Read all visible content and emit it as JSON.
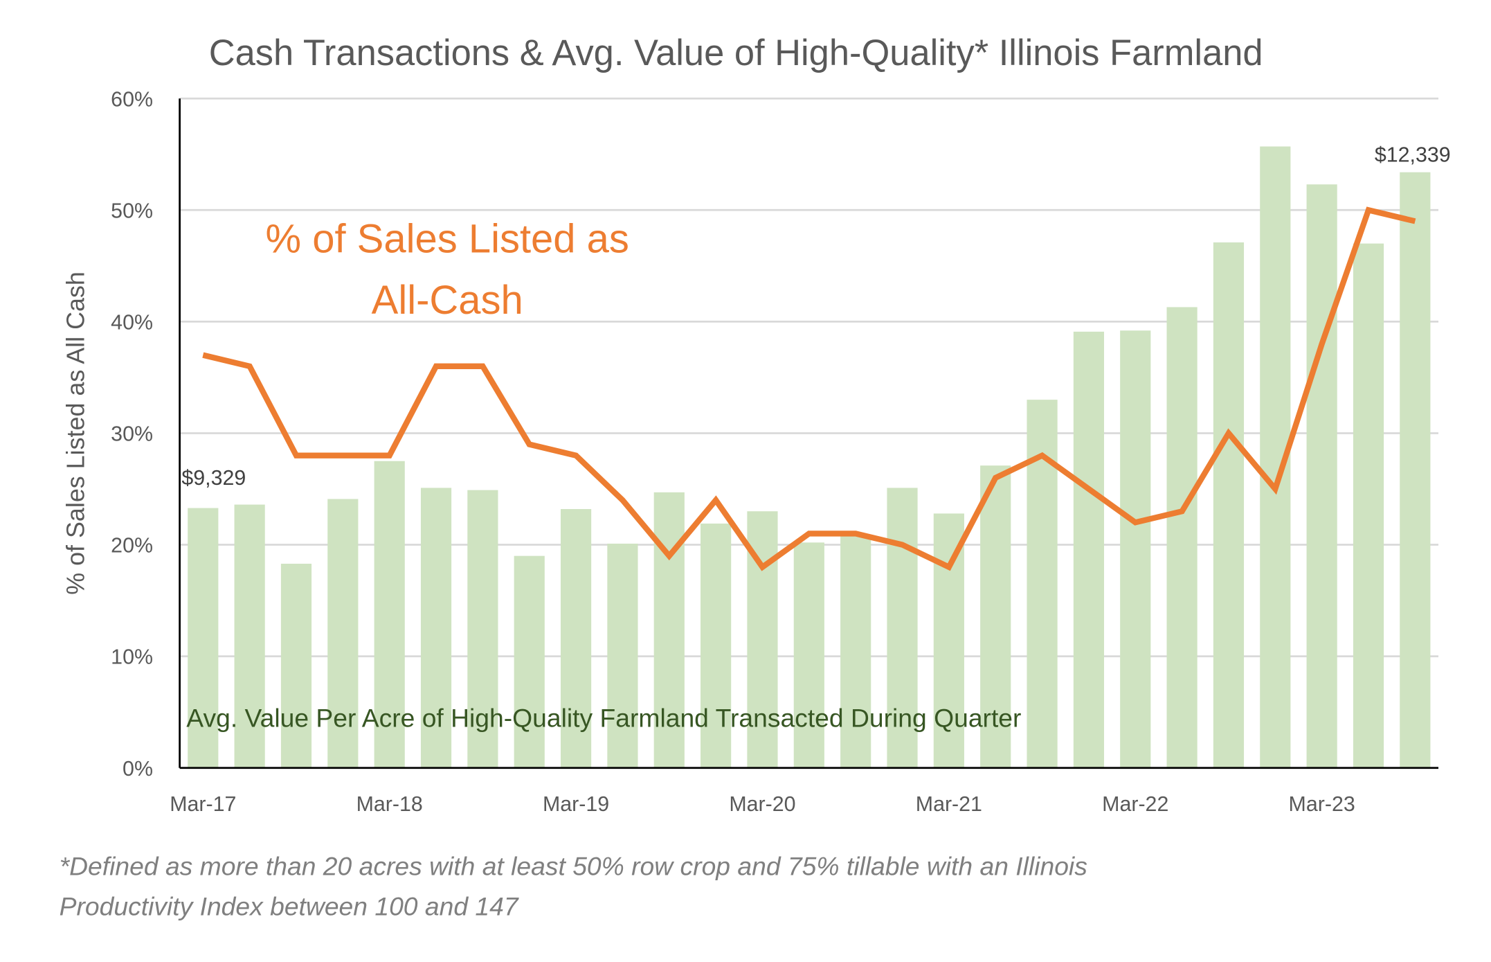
{
  "chart_data": {
    "type": "bar+line",
    "title": "Cash Transactions & Avg. Value of High-Quality* Illinois Farmland",
    "ylabel": "% of Sales Listed as All Cash",
    "ylim": [
      0,
      60
    ],
    "yticks": [
      "0%",
      "10%",
      "20%",
      "30%",
      "40%",
      "50%",
      "60%"
    ],
    "secondary_ylim_usd": [
      7000,
      13000
    ],
    "x_tick_labels": [
      "Mar-17",
      "Mar-18",
      "Mar-19",
      "Mar-20",
      "Mar-21",
      "Mar-22",
      "Mar-23"
    ],
    "x": [
      "Mar-17",
      "Jun-17",
      "Sep-17",
      "Dec-17",
      "Mar-18",
      "Jun-18",
      "Sep-18",
      "Dec-18",
      "Mar-19",
      "Jun-19",
      "Sep-19",
      "Dec-19",
      "Mar-20",
      "Jun-20",
      "Sep-20",
      "Dec-20",
      "Mar-21",
      "Jun-21",
      "Sep-21",
      "Dec-21",
      "Mar-22",
      "Jun-22",
      "Sep-22",
      "Dec-22",
      "Mar-23",
      "Jun-23",
      "Sep-23"
    ],
    "series": [
      {
        "name": "Avg. Value Per Acre of High-Quality Farmland Transacted During Quarter",
        "type": "bar",
        "axis": "secondary",
        "color": "#cfe3c1",
        "values": [
          9329,
          9360,
          8830,
          9410,
          9750,
          9510,
          9490,
          8900,
          9320,
          9010,
          9470,
          9190,
          9300,
          9020,
          9080,
          9510,
          9280,
          9710,
          10300,
          10910,
          10920,
          11130,
          11710,
          12570,
          12230,
          11700,
          12339
        ]
      },
      {
        "name": "% of Sales Listed as All-Cash",
        "type": "line",
        "axis": "primary",
        "color": "#ed7d31",
        "values": [
          37,
          36,
          28,
          28,
          28,
          36,
          36,
          29,
          28,
          24,
          19,
          24,
          18,
          21,
          21,
          20,
          18,
          26,
          28,
          25,
          22,
          23,
          30,
          25,
          38,
          50,
          49
        ]
      }
    ],
    "data_labels": {
      "first": "$9,329",
      "last": "$12,339"
    },
    "line_annotation": [
      "% of Sales Listed as",
      "All-Cash"
    ],
    "bar_annotation": "Avg. Value Per Acre of High-Quality Farmland Transacted During Quarter",
    "grid": true,
    "footnote": [
      "*Defined as more than 20 acres with at least 50% row crop and 75% tillable with an Illinois",
      "Productivity Index between 100 and 147"
    ]
  }
}
